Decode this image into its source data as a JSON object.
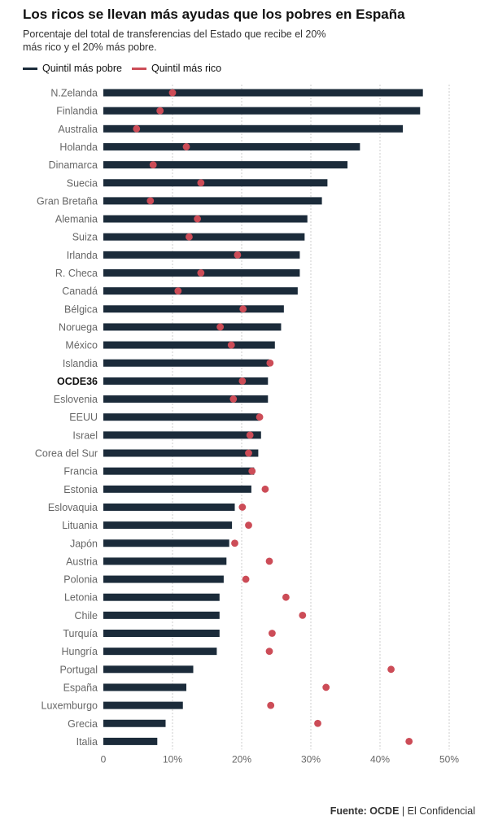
{
  "title": "Los ricos se llevan más ayudas que los pobres en España",
  "subtitle": "Porcentaje del total de transferencias del Estado que recibe el 20% más rico y el 20% más pobre.",
  "source_label": "Fuente: OCDE",
  "source_rest": " | El Confidencial",
  "colors": {
    "poor": "#1b2b3a",
    "rich": "#cc4c57",
    "grid": "#cccccc",
    "label": "#666666",
    "highlight": "#111111"
  },
  "chart_data": {
    "type": "bar",
    "orientation": "horizontal",
    "highlight_category": "OCDE36",
    "categories": [
      "N.Zelanda",
      "Finlandia",
      "Australia",
      "Holanda",
      "Dinamarca",
      "Suecia",
      "Gran Bretaña",
      "Alemania",
      "Suiza",
      "Irlanda",
      "R. Checa",
      "Canadá",
      "Bélgica",
      "Noruega",
      "México",
      "Islandia",
      "OCDE36",
      "Eslovenia",
      "EEUU",
      "Israel",
      "Corea del Sur",
      "Francia",
      "Estonia",
      "Eslovaquia",
      "Lituania",
      "Japón",
      "Austria",
      "Polonia",
      "Letonia",
      "Chile",
      "Turquía",
      "Hungría",
      "Portugal",
      "España",
      "Luxemburgo",
      "Grecia",
      "Italia"
    ],
    "series": [
      {
        "name": "Quintil más pobre",
        "style": "bar",
        "values": [
          46.2,
          45.8,
          43.3,
          37.1,
          35.3,
          32.4,
          31.6,
          29.5,
          29.1,
          28.4,
          28.4,
          28.1,
          26.1,
          25.7,
          24.8,
          24.0,
          23.8,
          23.8,
          22.6,
          22.8,
          22.4,
          21.8,
          21.4,
          19.0,
          18.6,
          18.2,
          17.8,
          17.4,
          16.8,
          16.8,
          16.8,
          16.4,
          13.0,
          12.0,
          11.5,
          9.0,
          7.8
        ]
      },
      {
        "name": "Quintil más rico",
        "style": "dot",
        "values": [
          10.0,
          8.2,
          4.8,
          12.0,
          7.2,
          14.1,
          6.8,
          13.6,
          12.4,
          19.4,
          14.1,
          10.8,
          20.2,
          16.9,
          18.5,
          24.1,
          20.1,
          18.8,
          22.6,
          21.2,
          21.0,
          21.5,
          23.4,
          20.1,
          21.0,
          19.0,
          24.0,
          20.6,
          26.4,
          28.8,
          24.4,
          24.0,
          41.6,
          32.2,
          24.2,
          31.0,
          44.2
        ]
      }
    ],
    "x_ticks": [
      "0",
      "10%",
      "20%",
      "30%",
      "40%",
      "50%"
    ],
    "xlim": [
      0,
      50
    ],
    "grid": "vertical dashed"
  }
}
